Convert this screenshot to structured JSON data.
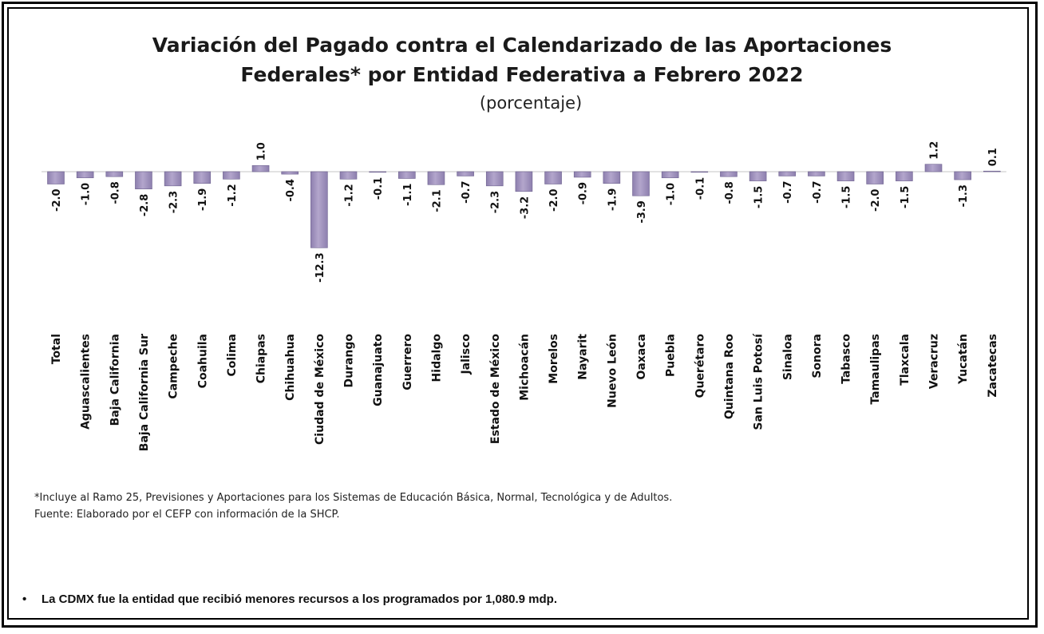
{
  "chart_data": {
    "type": "bar",
    "title_line1": "Variación del Pagado contra el Calendarizado de las Aportaciones",
    "title_line2": "Federales* por Entidad Federativa a Febrero 2022",
    "subtitle": "(porcentaje)",
    "categories": [
      "Total",
      "Aguascalientes",
      "Baja California",
      "Baja California Sur",
      "Campeche",
      "Coahuila",
      "Colima",
      "Chiapas",
      "Chihuahua",
      "Ciudad de México",
      "Durango",
      "Guanajuato",
      "Guerrero",
      "Hidalgo",
      "Jalisco",
      "Estado de México",
      "Michoacán",
      "Morelos",
      "Nayarit",
      "Nuevo León",
      "Oaxaca",
      "Puebla",
      "Querétaro",
      "Quintana Roo",
      "San Luis Potosí",
      "Sinaloa",
      "Sonora",
      "Tabasco",
      "Tamaulipas",
      "Tlaxcala",
      "Veracruz",
      "Yucatán",
      "Zacatecas"
    ],
    "values": [
      -2.0,
      -1.0,
      -0.8,
      -2.8,
      -2.3,
      -1.9,
      -1.2,
      1.0,
      -0.4,
      -12.3,
      -1.2,
      -0.1,
      -1.1,
      -2.1,
      -0.7,
      -2.3,
      -3.2,
      -2.0,
      -0.9,
      -1.9,
      -3.9,
      -1.0,
      -0.1,
      -0.8,
      -1.5,
      -0.7,
      -0.7,
      -1.5,
      -2.0,
      -1.5,
      1.2,
      -1.3,
      0.1
    ],
    "labels": [
      "-2.0",
      "-1.0",
      "-0.8",
      "-2.8",
      "-2.3",
      "-1.9",
      "-1.2",
      "1.0",
      "-0.4",
      "-12.3",
      "-1.2",
      "-0.1",
      "-1.1",
      "-2.1",
      "-0.7",
      "-2.3",
      "-3.2",
      "-2.0",
      "-0.9",
      "-1.9",
      "-3.9",
      "-1.0",
      "-0.1",
      "-0.8",
      "-1.5",
      "-0.7",
      "-0.7",
      "-1.5",
      "-2.0",
      "-1.5",
      "1.2",
      "-1.3",
      "0.1"
    ],
    "xlabel": "",
    "ylabel": "",
    "grid": false,
    "bar_color": "#b3a6cc"
  },
  "notes": {
    "footnote": "*Incluye al Ramo 25, Previsiones y Aportaciones para los Sistemas de Educación Básica, Normal, Tecnológica y de Adultos.",
    "source": "Fuente: Elaborado por el CEFP con información de la SHCP."
  },
  "bullet": {
    "marker": "•",
    "text": "La CDMX fue la entidad que recibió menores recursos a los programados por 1,080.9 mdp."
  }
}
